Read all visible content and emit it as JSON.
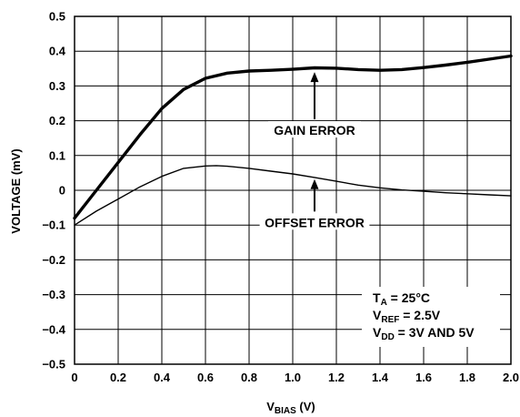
{
  "chart_data": {
    "type": "line",
    "xlabel_main": "V",
    "xlabel_sub": "BIAS",
    "xlabel_unit": " (V)",
    "ylabel": "VOLTAGE (mV)",
    "xlim": [
      0,
      2.0
    ],
    "ylim": [
      -0.5,
      0.5
    ],
    "grid": true,
    "x_ticks": [
      "0",
      "0.2",
      "0.4",
      "0.6",
      "0.8",
      "1.0",
      "1.2",
      "1.4",
      "1.6",
      "1.8",
      "2.0"
    ],
    "y_ticks": [
      "0.5",
      "0.4",
      "0.3",
      "0.2",
      "0.1",
      "0",
      "−0.1",
      "−0.2",
      "−0.3",
      "−0.4",
      "−0.5"
    ],
    "series": [
      {
        "name": "GAIN ERROR",
        "x": [
          0,
          0.1,
          0.2,
          0.3,
          0.4,
          0.5,
          0.6,
          0.7,
          0.8,
          0.9,
          1.0,
          1.1,
          1.2,
          1.3,
          1.4,
          1.5,
          1.6,
          1.7,
          1.8,
          1.9,
          2.0
        ],
        "y": [
          -0.08,
          0.0,
          0.08,
          0.16,
          0.235,
          0.29,
          0.322,
          0.337,
          0.343,
          0.345,
          0.348,
          0.352,
          0.351,
          0.347,
          0.345,
          0.347,
          0.353,
          0.36,
          0.368,
          0.377,
          0.386
        ]
      },
      {
        "name": "OFFSET ERROR",
        "x": [
          0,
          0.1,
          0.2,
          0.3,
          0.4,
          0.5,
          0.6,
          0.65,
          0.7,
          0.8,
          0.9,
          1.0,
          1.1,
          1.2,
          1.3,
          1.4,
          1.5,
          1.6,
          1.7,
          1.8,
          1.9,
          2.0
        ],
        "y": [
          -0.1,
          -0.06,
          -0.025,
          0.01,
          0.04,
          0.063,
          0.07,
          0.071,
          0.069,
          0.063,
          0.055,
          0.047,
          0.037,
          0.026,
          0.015,
          0.007,
          0.001,
          -0.003,
          -0.007,
          -0.01,
          -0.013,
          -0.016
        ]
      }
    ],
    "annotations": [
      {
        "text": "GAIN ERROR",
        "x": 1.1,
        "y": 0.17,
        "arrow_to": [
          1.1,
          0.34
        ]
      },
      {
        "text": "OFFSET ERROR",
        "x": 1.1,
        "y": -0.095,
        "arrow_to": [
          1.1,
          0.032
        ]
      }
    ],
    "conditions": [
      {
        "main": "T",
        "sub": "A",
        "rest": " = 25°C"
      },
      {
        "main": "V",
        "sub": "REF",
        "rest": " = 2.5V"
      },
      {
        "main": "V",
        "sub": "DD",
        "rest": " = 3V AND 5V"
      }
    ]
  }
}
